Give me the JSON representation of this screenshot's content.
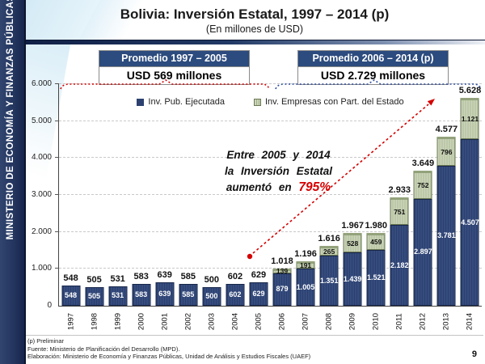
{
  "sidebar": {
    "text": "MINISTERIO DE ECONOMÍA Y FINANZAS PÚBLICAS"
  },
  "header": {
    "title": "Bolivia: Inversión Estatal, 1997 – 2014 (p)",
    "subtitle": "(En millones de USD)"
  },
  "callouts": {
    "left": {
      "title": "Promedio 1997 – 2005",
      "value": "USD 569 millones"
    },
    "right": {
      "title": "Promedio 2006 – 2014 (p)",
      "value": "USD 2.729 millones"
    }
  },
  "annotation": {
    "line1": "Entre 2005 y 2014",
    "line2": "la Inversión Estatal",
    "line3_prefix": "aumentó en ",
    "line3_highlight": "795%",
    "highlight_color": "#d40000"
  },
  "chart_data": {
    "type": "bar",
    "stacked": true,
    "title": "Bolivia: Inversión Estatal, 1997 – 2014 (p)",
    "subtitle": "(En millones de USD)",
    "categories": [
      "1997",
      "1998",
      "1999",
      "2000",
      "2001",
      "2002",
      "2003",
      "2004",
      "2005",
      "2006",
      "2007",
      "2008",
      "2009",
      "2010",
      "2011",
      "2012",
      "2013",
      "2014"
    ],
    "series": [
      {
        "name": "Inv. Pub. Ejecutada",
        "color": "#2c4170",
        "values": [
          548,
          505,
          531,
          583,
          639,
          585,
          500,
          602,
          629,
          879,
          1005,
          1351,
          1439,
          1521,
          2182,
          2897,
          3781,
          4507
        ],
        "labels": [
          "548",
          "505",
          "531",
          "583",
          "639",
          "585",
          "500",
          "602",
          "629",
          "879",
          "1.005",
          "1.351",
          "1.439",
          "1.521",
          "2.182",
          "2.897",
          "3.781",
          "4.507"
        ]
      },
      {
        "name": "Inv. Empresas con Part. del Estado",
        "color": "#cbd4ba",
        "values": [
          0,
          0,
          0,
          0,
          0,
          0,
          0,
          0,
          0,
          139,
          191,
          265,
          528,
          459,
          751,
          752,
          796,
          1121
        ],
        "labels": [
          "",
          "",
          "",
          "",
          "",
          "",
          "",
          "",
          "",
          "139",
          "191",
          "265",
          "528",
          "459",
          "751",
          "752",
          "796",
          "1.121"
        ]
      }
    ],
    "totals": [
      548,
      505,
      531,
      583,
      639,
      585,
      500,
      602,
      629,
      1018,
      1196,
      1616,
      1967,
      1980,
      2933,
      3649,
      4577,
      5628
    ],
    "total_labels": [
      "548",
      "505",
      "531",
      "583",
      "639",
      "585",
      "500",
      "602",
      "629",
      "1.018",
      "1.196",
      "1.616",
      "1.967",
      "1.980",
      "2.933",
      "3.649",
      "4.577",
      "5.628"
    ],
    "ylim": [
      0,
      6000
    ],
    "yticks": [
      {
        "value": 6000,
        "label": "6.000"
      },
      {
        "value": 5000,
        "label": "5.000"
      },
      {
        "value": 4000,
        "label": "4.000"
      },
      {
        "value": 3000,
        "label": "3.000"
      },
      {
        "value": 2000,
        "label": "2.000"
      },
      {
        "value": 1000,
        "label": "1.000"
      },
      {
        "value": 0,
        "label": "0"
      }
    ],
    "grid": true,
    "legend_position": "top-inside",
    "averages": {
      "period_1997_2005": 569,
      "period_2006_2014": 2729
    },
    "growth_2005_2014_pct": 795
  },
  "footnotes": [
    "(p) Preliminar",
    "Fuente: Ministerio de Planificación del Desarrollo (MPD).",
    "Elaboración: Ministerio de Economía y Finanzas Públicas, Unidad de Análisis y Estudios Fiscales (UAEF)"
  ],
  "page_number": "9"
}
